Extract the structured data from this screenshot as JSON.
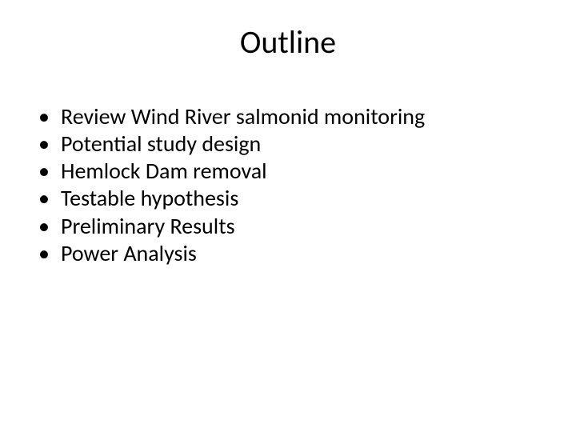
{
  "slide": {
    "title": "Outline",
    "bullets": [
      "Review Wind River salmonid monitoring",
      "Potential study design",
      "Hemlock Dam removal",
      "Testable hypothesis",
      "Preliminary Results",
      "Power Analysis"
    ],
    "background_color": "#ffffff",
    "text_color": "#000000",
    "title_fontsize": 40,
    "bullet_fontsize": 28,
    "font_family": "Calibri"
  }
}
